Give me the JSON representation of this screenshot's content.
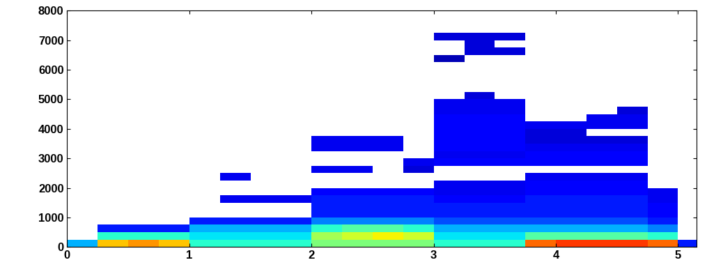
{
  "chart_data": {
    "type": "heatmap",
    "x_edges": [
      0,
      0.25,
      0.5,
      0.75,
      1.0,
      1.25,
      1.5,
      1.75,
      2.0,
      2.25,
      2.5,
      2.75,
      3.0,
      3.25,
      3.5,
      3.75,
      4.0,
      4.25,
      4.5,
      4.75,
      5.0,
      5.25
    ],
    "y_edges": [
      0,
      250,
      500,
      750,
      1000,
      1250,
      1500,
      1750,
      2000,
      2250,
      2500,
      2750,
      3000,
      3250,
      3500,
      3750,
      4000,
      4250,
      4500,
      4750,
      5000,
      5250,
      6250,
      6500,
      6750,
      7000,
      7250,
      7500,
      8000
    ],
    "cells": [
      [
        0.3,
        0.7,
        0.75,
        0.7,
        0.4,
        0.4,
        0.4,
        0.4,
        0.5,
        0.5,
        0.5,
        0.5,
        0.4,
        0.4,
        0.4,
        0.8,
        0.85,
        0.85,
        0.85,
        0.8,
        0.15
      ],
      [
        null,
        0.4,
        0.4,
        0.4,
        0.35,
        0.35,
        0.35,
        0.35,
        0.55,
        0.6,
        0.65,
        0.6,
        0.35,
        0.35,
        0.35,
        0.45,
        0.45,
        0.45,
        0.45,
        0.4,
        null
      ],
      [
        null,
        0.15,
        0.15,
        0.15,
        0.3,
        0.3,
        0.3,
        0.3,
        0.4,
        0.45,
        0.45,
        0.4,
        0.3,
        0.3,
        0.3,
        0.3,
        0.3,
        0.3,
        0.3,
        0.25,
        null
      ],
      [
        null,
        null,
        null,
        null,
        0.15,
        0.15,
        0.15,
        0.15,
        0.25,
        0.25,
        0.25,
        0.25,
        0.2,
        0.2,
        0.2,
        0.2,
        0.2,
        0.2,
        0.2,
        0.15,
        null
      ],
      [
        null,
        null,
        null,
        null,
        null,
        null,
        null,
        null,
        0.15,
        0.15,
        0.15,
        0.15,
        0.15,
        0.15,
        0.15,
        0.15,
        0.15,
        0.15,
        0.15,
        0.12,
        null
      ],
      [
        null,
        null,
        null,
        null,
        null,
        null,
        null,
        null,
        0.15,
        0.15,
        0.15,
        0.15,
        0.15,
        0.15,
        0.15,
        0.15,
        0.15,
        0.15,
        0.15,
        0.12,
        null
      ],
      [
        null,
        null,
        null,
        null,
        null,
        0.1,
        0.1,
        0.1,
        0.15,
        0.15,
        0.15,
        0.15,
        0.12,
        0.12,
        0.12,
        0.15,
        0.15,
        0.15,
        0.15,
        0.1,
        null
      ],
      [
        null,
        null,
        null,
        null,
        null,
        null,
        null,
        null,
        0.12,
        0.12,
        0.12,
        0.12,
        0.1,
        0.1,
        0.1,
        0.12,
        0.12,
        0.12,
        0.12,
        0.1,
        null
      ],
      [
        null,
        null,
        null,
        null,
        null,
        null,
        null,
        null,
        null,
        null,
        null,
        null,
        0.1,
        0.1,
        0.1,
        0.12,
        0.12,
        0.12,
        0.12,
        null,
        null
      ],
      [
        null,
        null,
        null,
        null,
        null,
        0.1,
        null,
        null,
        null,
        null,
        null,
        null,
        null,
        null,
        null,
        0.1,
        0.1,
        0.1,
        0.1,
        null,
        null
      ],
      [
        null,
        null,
        null,
        null,
        null,
        null,
        null,
        null,
        0.1,
        0.1,
        null,
        0.08,
        null,
        null,
        null,
        null,
        null,
        null,
        null,
        null,
        null
      ],
      [
        null,
        null,
        null,
        null,
        null,
        null,
        null,
        null,
        null,
        null,
        null,
        0.1,
        0.12,
        0.12,
        0.12,
        0.12,
        0.12,
        0.12,
        0.12,
        null,
        null
      ],
      [
        null,
        null,
        null,
        null,
        null,
        null,
        null,
        null,
        null,
        null,
        null,
        null,
        0.1,
        0.1,
        0.1,
        0.12,
        0.12,
        0.12,
        0.12,
        null,
        null
      ],
      [
        null,
        null,
        null,
        null,
        null,
        null,
        null,
        null,
        0.1,
        0.1,
        0.1,
        null,
        0.12,
        0.12,
        0.12,
        0.1,
        0.1,
        0.1,
        0.1,
        null,
        null
      ],
      [
        null,
        null,
        null,
        null,
        null,
        null,
        null,
        null,
        0.1,
        0.1,
        0.1,
        null,
        0.12,
        0.12,
        0.12,
        0.08,
        0.08,
        0.08,
        0.08,
        null,
        null
      ],
      [
        null,
        null,
        null,
        null,
        null,
        null,
        null,
        null,
        null,
        null,
        null,
        null,
        0.12,
        0.12,
        0.12,
        0.08,
        0.08,
        null,
        null,
        null,
        null
      ],
      [
        null,
        null,
        null,
        null,
        null,
        null,
        null,
        null,
        null,
        null,
        null,
        null,
        0.12,
        0.12,
        0.12,
        0.1,
        0.1,
        0.1,
        0.1,
        null,
        null
      ],
      [
        null,
        null,
        null,
        null,
        null,
        null,
        null,
        null,
        null,
        null,
        null,
        null,
        0.12,
        0.12,
        0.12,
        null,
        null,
        0.1,
        0.1,
        null,
        null
      ],
      [
        null,
        null,
        null,
        null,
        null,
        null,
        null,
        null,
        null,
        null,
        null,
        null,
        0.1,
        0.1,
        0.1,
        null,
        null,
        null,
        0.08,
        null,
        null
      ],
      [
        null,
        null,
        null,
        null,
        null,
        null,
        null,
        null,
        null,
        null,
        null,
        null,
        0.1,
        0.1,
        0.1,
        null,
        null,
        null,
        null,
        null,
        null
      ],
      [
        null,
        null,
        null,
        null,
        null,
        null,
        null,
        null,
        null,
        null,
        null,
        null,
        null,
        0.08,
        null,
        null,
        null,
        null,
        null,
        null,
        null
      ],
      [
        null,
        null,
        null,
        null,
        null,
        null,
        null,
        null,
        null,
        null,
        null,
        null,
        null,
        null,
        null,
        null,
        null,
        null,
        null,
        null,
        null
      ],
      [
        null,
        null,
        null,
        null,
        null,
        null,
        null,
        null,
        null,
        null,
        null,
        null,
        0.05,
        null,
        null,
        null,
        null,
        null,
        null,
        null,
        null
      ],
      [
        null,
        null,
        null,
        null,
        null,
        null,
        null,
        null,
        null,
        null,
        null,
        null,
        null,
        0.08,
        0.08,
        null,
        null,
        null,
        null,
        null,
        null
      ],
      [
        null,
        null,
        null,
        null,
        null,
        null,
        null,
        null,
        null,
        null,
        null,
        null,
        null,
        0.08,
        null,
        null,
        null,
        null,
        null,
        null,
        null
      ],
      [
        null,
        null,
        null,
        null,
        null,
        null,
        null,
        null,
        null,
        null,
        null,
        null,
        0.08,
        0.08,
        0.08,
        null,
        null,
        null,
        null,
        null,
        null
      ],
      [
        null,
        null,
        null,
        null,
        null,
        null,
        null,
        null,
        null,
        null,
        null,
        null,
        null,
        null,
        null,
        null,
        null,
        null,
        null,
        null,
        null
      ],
      [
        null,
        null,
        null,
        null,
        null,
        null,
        null,
        null,
        null,
        null,
        null,
        null,
        null,
        null,
        null,
        null,
        null,
        null,
        null,
        null,
        null
      ]
    ],
    "color_range": [
      0,
      1
    ],
    "color": "jet",
    "xlim": [
      0,
      5.15
    ],
    "xticks": [
      0,
      1,
      2,
      3,
      4,
      5
    ],
    "ylim": [
      0,
      8000
    ],
    "yticks": [
      0,
      1000,
      2000,
      3000,
      4000,
      5000,
      6000,
      7000,
      8000
    ]
  }
}
